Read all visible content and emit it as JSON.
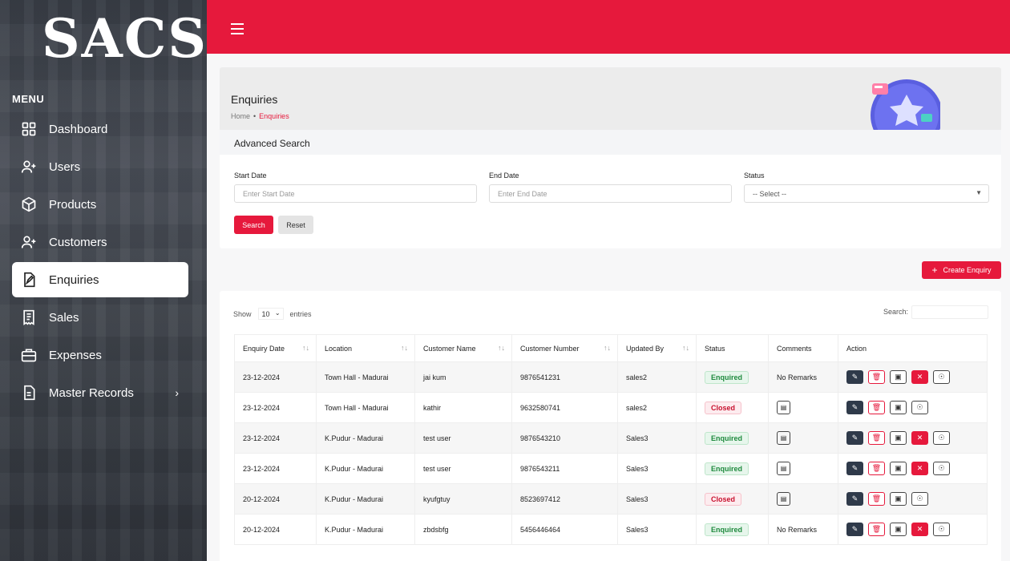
{
  "app": {
    "logo": "SACS"
  },
  "sidebar": {
    "menu_title": "MENU",
    "items": [
      {
        "label": "Dashboard",
        "icon": "grid-icon"
      },
      {
        "label": "Users",
        "icon": "user-plus-icon"
      },
      {
        "label": "Products",
        "icon": "box-icon"
      },
      {
        "label": "Customers",
        "icon": "user-plus-icon"
      },
      {
        "label": "Enquiries",
        "icon": "document-edit-icon",
        "active": true
      },
      {
        "label": "Sales",
        "icon": "receipt-icon"
      },
      {
        "label": "Expenses",
        "icon": "briefcase-icon"
      },
      {
        "label": "Master Records",
        "icon": "file-icon",
        "has_submenu": true
      }
    ]
  },
  "page": {
    "title": "Enquiries",
    "breadcrumb": {
      "home": "Home",
      "current": "Enquiries"
    }
  },
  "search": {
    "title": "Advanced Search",
    "start_date": {
      "label": "Start Date",
      "placeholder": "Enter Start Date"
    },
    "end_date": {
      "label": "End Date",
      "placeholder": "Enter End Date"
    },
    "status": {
      "label": "Status",
      "selected": "-- Select --"
    },
    "search_button": "Search",
    "reset_button": "Reset"
  },
  "create_button": "Create Enquiry",
  "table": {
    "show_label": "Show",
    "page_size": "10",
    "entries_label": "entries",
    "search_label": "Search:",
    "columns": [
      "Enquiry Date",
      "Location",
      "Customer Name",
      "Customer Number",
      "Updated By",
      "Status",
      "Comments",
      "Action"
    ],
    "rows": [
      {
        "date": "23-12-2024",
        "location": "Town Hall - Madurai",
        "customer": "jai kum",
        "number": "9876541231",
        "updated_by": "sales2",
        "status": "Enquired",
        "comments": "No Remarks"
      },
      {
        "date": "23-12-2024",
        "location": "Town Hall - Madurai",
        "customer": "kathir",
        "number": "9632580741",
        "updated_by": "sales2",
        "status": "Closed",
        "comments": ""
      },
      {
        "date": "23-12-2024",
        "location": "K.Pudur - Madurai",
        "customer": "test user",
        "number": "9876543210",
        "updated_by": "Sales3",
        "status": "Enquired",
        "comments": ""
      },
      {
        "date": "23-12-2024",
        "location": "K.Pudur - Madurai",
        "customer": "test user",
        "number": "9876543211",
        "updated_by": "Sales3",
        "status": "Enquired",
        "comments": ""
      },
      {
        "date": "20-12-2024",
        "location": "K.Pudur - Madurai",
        "customer": "kyufgtuy",
        "number": "8523697412",
        "updated_by": "Sales3",
        "status": "Closed",
        "comments": ""
      },
      {
        "date": "20-12-2024",
        "location": "K.Pudur - Madurai",
        "customer": "zbdsbfg",
        "number": "5456446464",
        "updated_by": "Sales3",
        "status": "Enquired",
        "comments": "No Remarks"
      }
    ]
  },
  "colors": {
    "brand_red": "#e6193c",
    "sidebar_dark": "#3a3f48"
  }
}
